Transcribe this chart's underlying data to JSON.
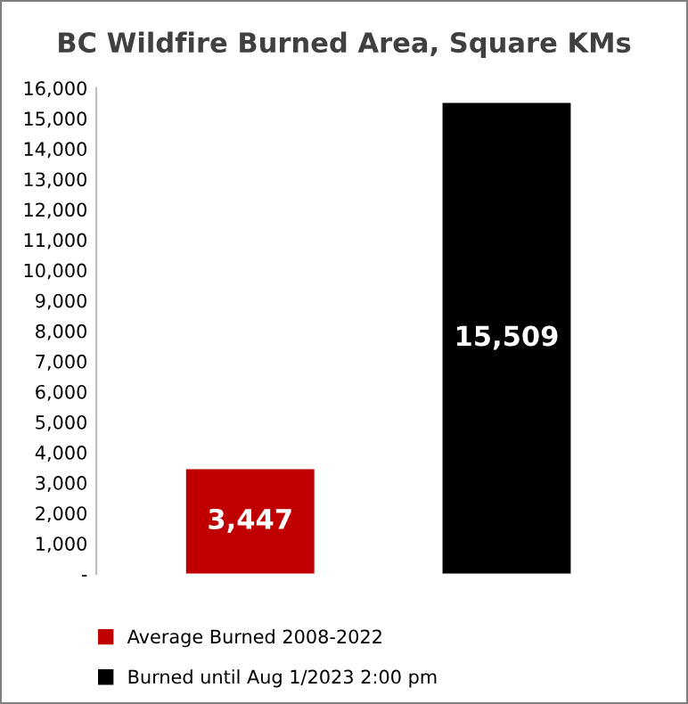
{
  "chart_data": {
    "type": "bar",
    "title": "BC Wildfire Burned Area, Square KMs",
    "categories": [
      null,
      null
    ],
    "series": [
      {
        "name": "Average Burned 2008-2022",
        "color": "#c00000",
        "values": [
          3447,
          null
        ],
        "value_labels": [
          "3,447",
          null
        ]
      },
      {
        "name": "Burned until Aug 1/2023 2:00 pm",
        "color": "#000000",
        "values": [
          null,
          15509
        ],
        "value_labels": [
          null,
          "15,509"
        ]
      }
    ],
    "stacked": true,
    "ylim": [
      0,
      16000
    ],
    "yticks": [
      {
        "value": 0,
        "label": "-"
      },
      {
        "value": 1000,
        "label": "1,000"
      },
      {
        "value": 2000,
        "label": "2,000"
      },
      {
        "value": 3000,
        "label": "3,000"
      },
      {
        "value": 4000,
        "label": "4,000"
      },
      {
        "value": 5000,
        "label": "5,000"
      },
      {
        "value": 6000,
        "label": "6,000"
      },
      {
        "value": 7000,
        "label": "7,000"
      },
      {
        "value": 8000,
        "label": "8,000"
      },
      {
        "value": 9000,
        "label": "9,000"
      },
      {
        "value": 10000,
        "label": "10,000"
      },
      {
        "value": 11000,
        "label": "11,000"
      },
      {
        "value": 12000,
        "label": "12,000"
      },
      {
        "value": 13000,
        "label": "13,000"
      },
      {
        "value": 14000,
        "label": "14,000"
      },
      {
        "value": 15000,
        "label": "15,000"
      },
      {
        "value": 16000,
        "label": "16,000"
      }
    ],
    "grid": false,
    "legend": "bottom"
  }
}
